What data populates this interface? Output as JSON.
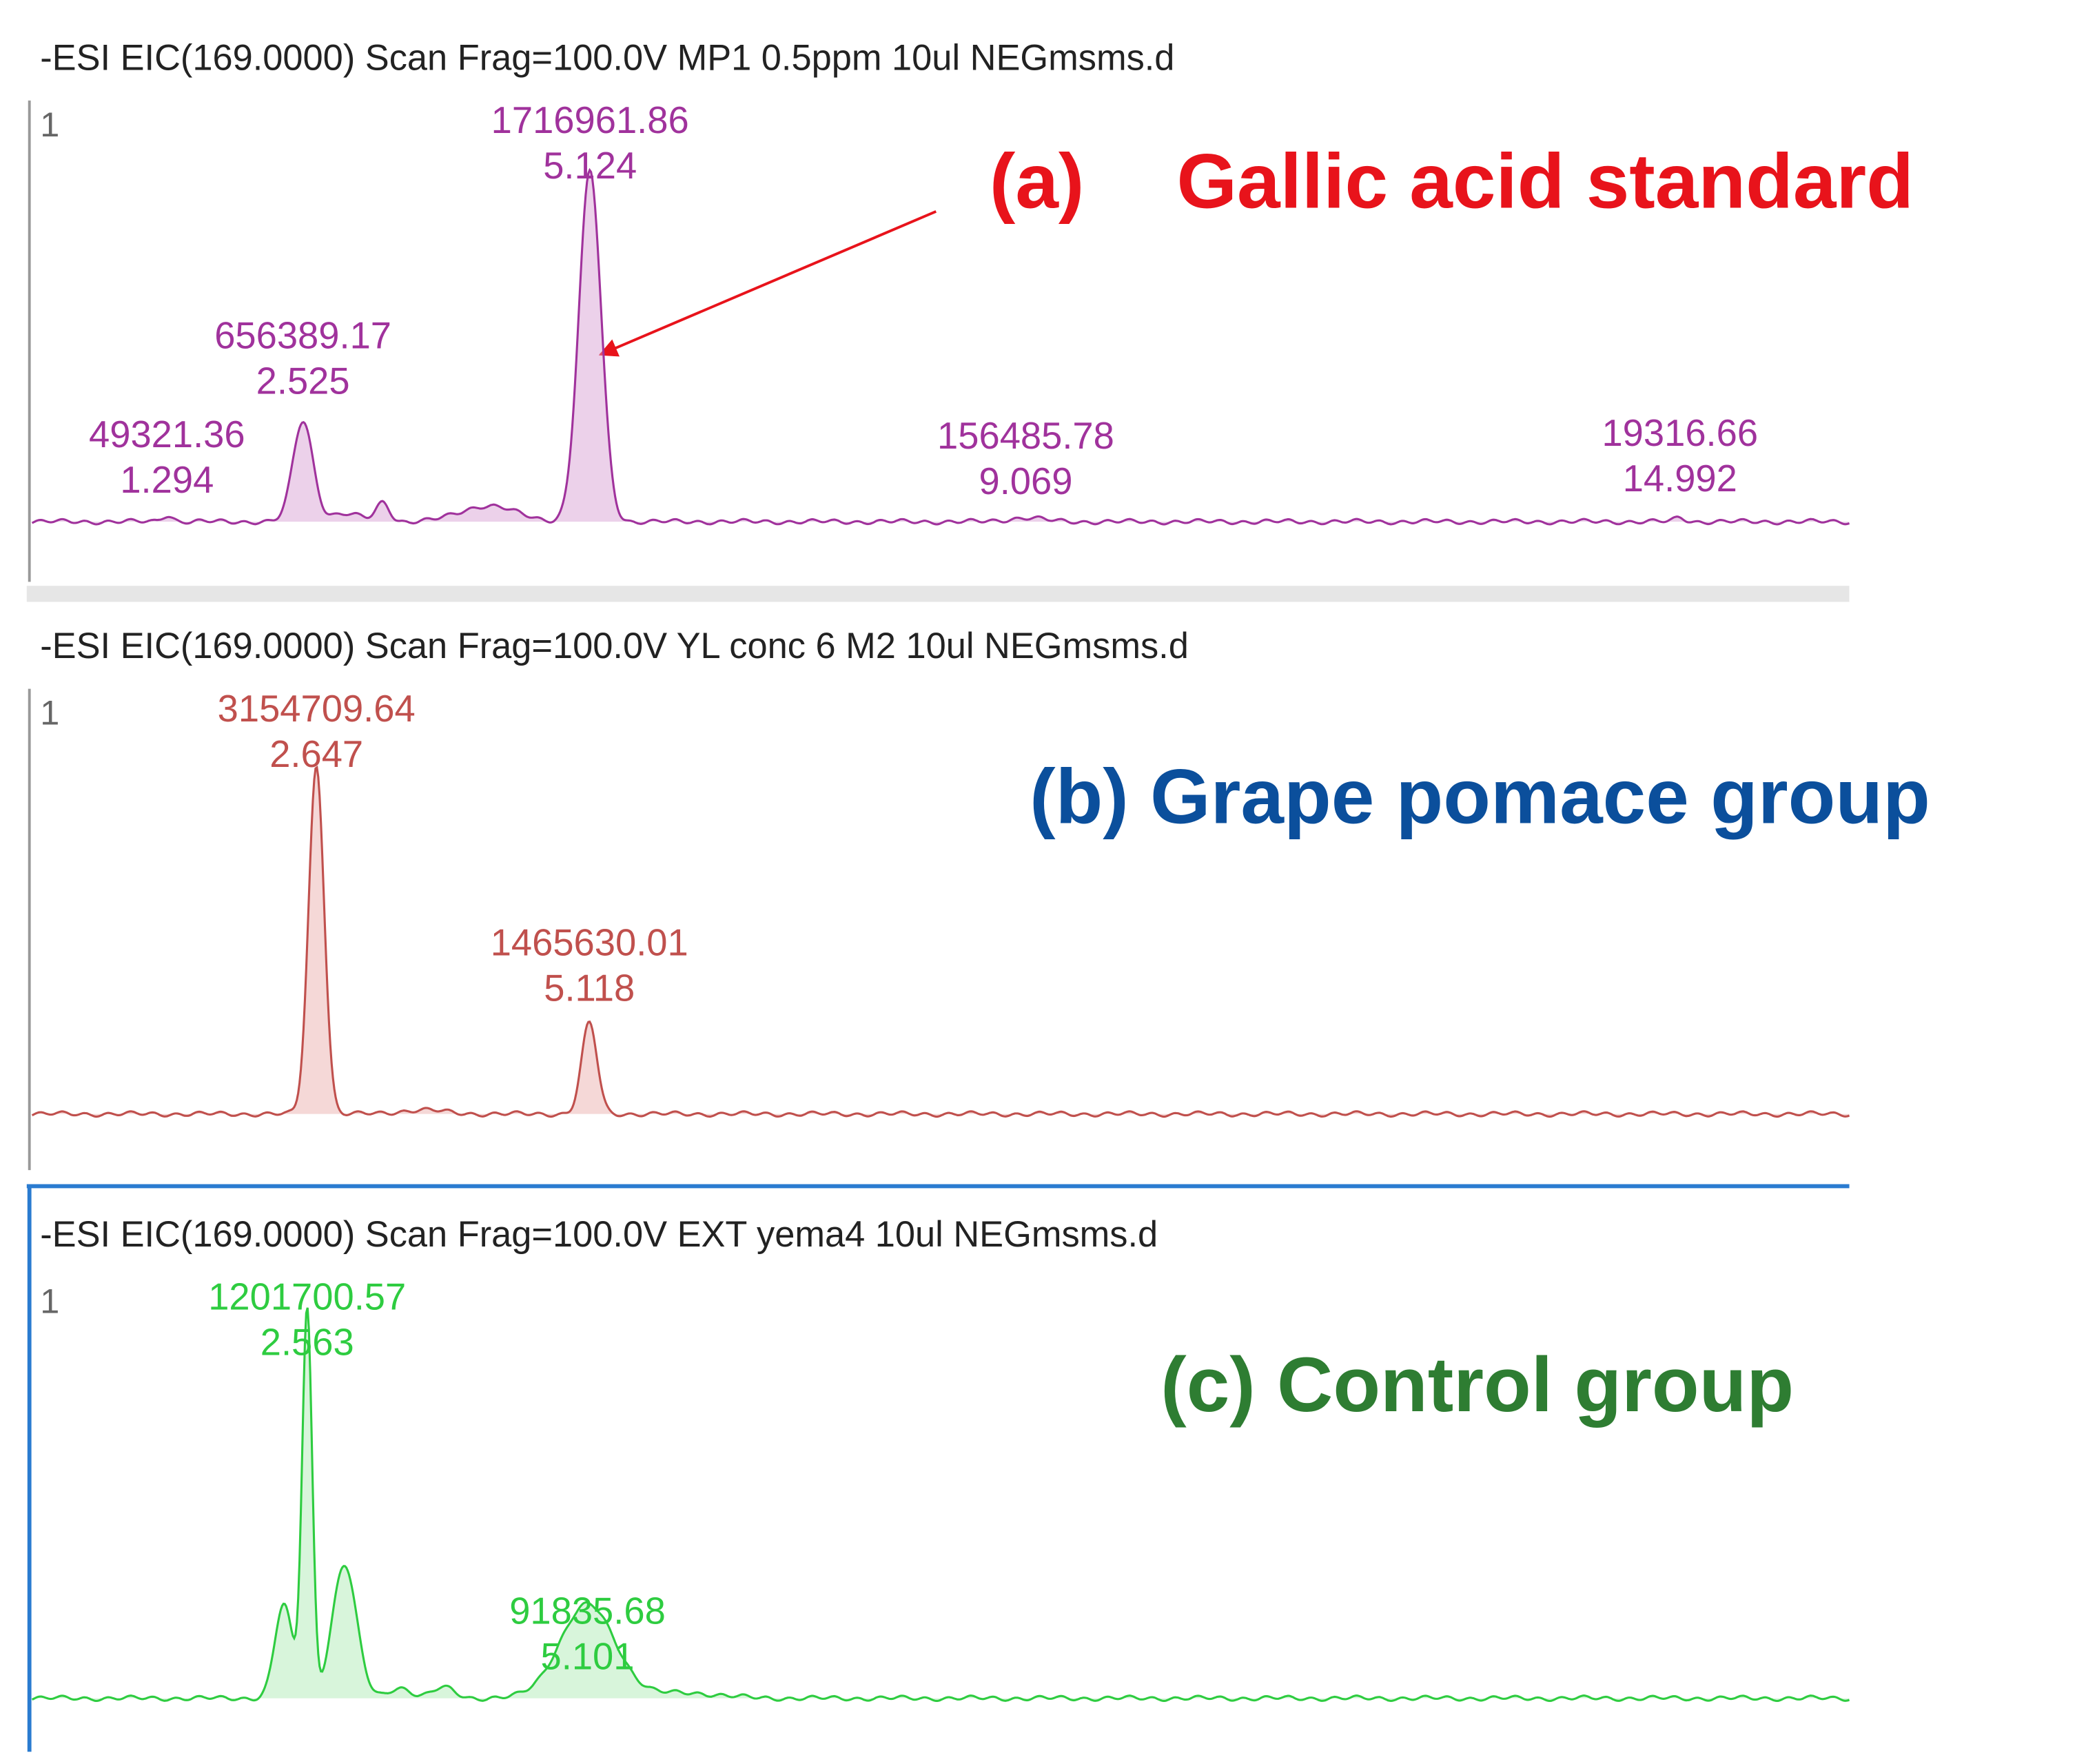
{
  "panels": [
    {
      "header": "-ESI EIC(169.0000) Scan Frag=100.0V MP1 0.5ppm 10ul NEGmsms.d",
      "y_label": "1",
      "peaks": [
        {
          "area": 49321.36,
          "time": 1.294
        },
        {
          "area": 656389.17,
          "time": 2.525
        },
        {
          "area": 1716961.86,
          "time": 5.124
        },
        {
          "area": 156485.78,
          "time": 9.069
        },
        {
          "area": 19316.66,
          "time": 14.992
        }
      ],
      "annotation_tag": "(a)",
      "annotation": "Gallic acid standard"
    },
    {
      "header": "-ESI EIC(169.0000) Scan Frag=100.0V YL conc 6  M2 10ul NEGmsms.d",
      "y_label": "1",
      "peaks": [
        {
          "area": 3154709.64,
          "time": 2.647
        },
        {
          "area": 1465630.01,
          "time": 5.118
        }
      ],
      "annotation": "(b) Grape pomace group"
    },
    {
      "header": "-ESI EIC(169.0000) Scan Frag=100.0V EXT yema4 10ul NEGmsms.d",
      "y_label": "1",
      "peaks": [
        {
          "area": 1201700.57,
          "time": 2.563
        },
        {
          "area": 91835.68,
          "time": 5.101
        }
      ],
      "annotation": "(c) Control group"
    }
  ]
}
